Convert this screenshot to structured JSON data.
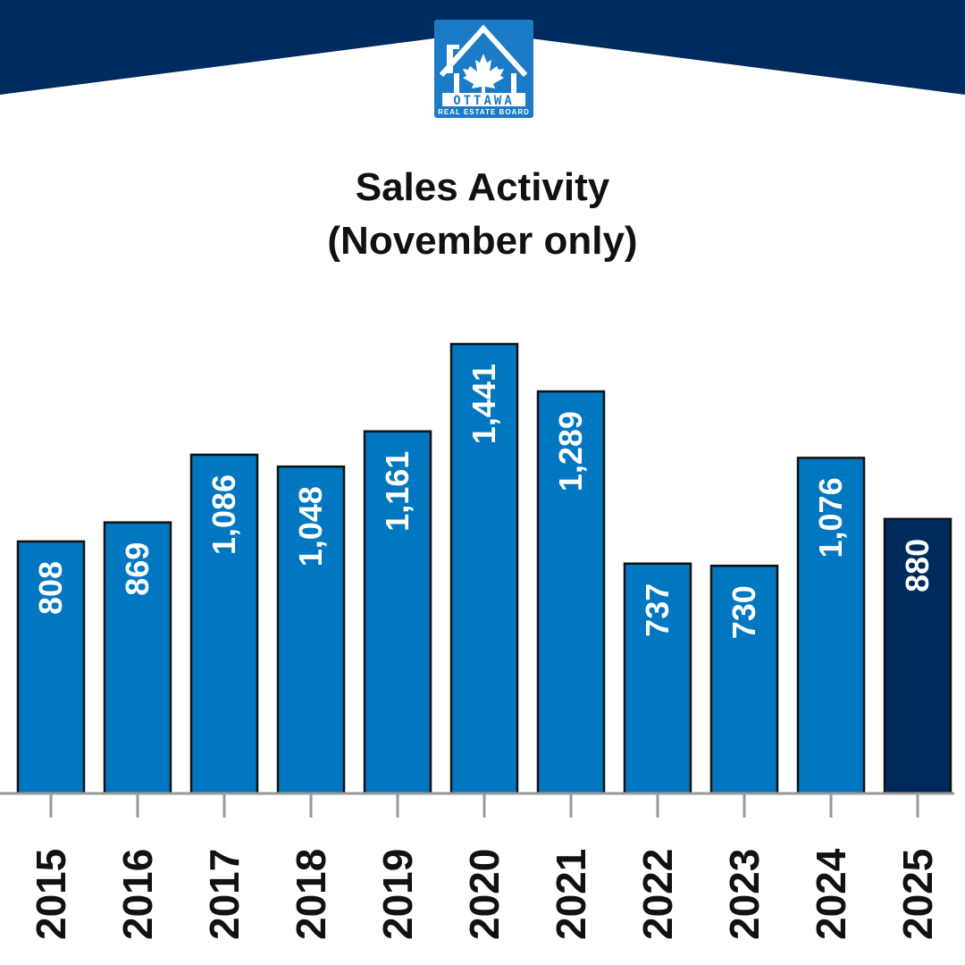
{
  "logo": {
    "line1": "OTTAWA",
    "line2": "REAL ESTATE BOARD"
  },
  "colors": {
    "header": "#002b5e",
    "bar": "#0077c0",
    "bar_highlight": "#002a5c",
    "axis": "#999999"
  },
  "chart_data": {
    "type": "bar",
    "title": "Sales Activity",
    "subtitle": "(November only)",
    "xlabel": "",
    "ylabel": "",
    "categories": [
      "2015",
      "2016",
      "2017",
      "2018",
      "2019",
      "2020",
      "2021",
      "2022",
      "2023",
      "2024",
      "2025"
    ],
    "values": [
      808,
      869,
      1086,
      1048,
      1161,
      1441,
      1289,
      737,
      730,
      1076,
      880
    ],
    "labels": [
      "808",
      "869",
      "1,086",
      "1,048",
      "1,161",
      "1,441",
      "1,289",
      "737",
      "730",
      "1,076",
      "880"
    ],
    "highlight": "2025",
    "ylim": [
      0,
      1441
    ],
    "grid": false,
    "legend": "none"
  }
}
